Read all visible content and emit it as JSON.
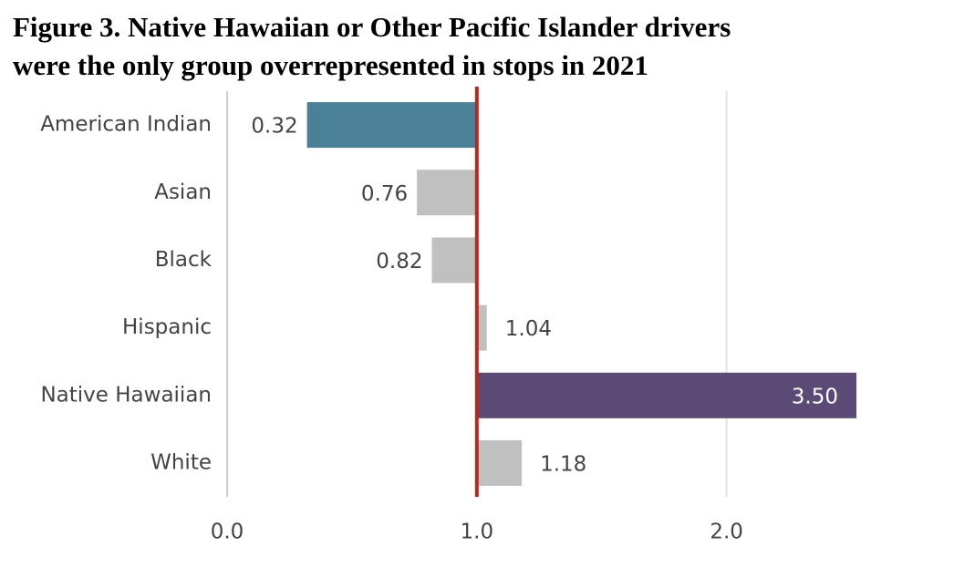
{
  "chart_data": {
    "type": "bar",
    "orientation": "horizontal",
    "title": [
      "Figure 3. Native Hawaiian or Other Pacific Islander drivers",
      "were the only group overrepresented in stops in 2021"
    ],
    "categories": [
      "American Indian",
      "Asian",
      "Black",
      "Hispanic",
      "Native Hawaiian",
      "White"
    ],
    "values": [
      0.32,
      0.76,
      0.82,
      1.04,
      3.5,
      1.18
    ],
    "value_labels": [
      "0.32",
      "0.76",
      "0.82",
      "1.04",
      "3.50",
      "1.18"
    ],
    "colors": [
      "#4a8199",
      "#c0c0c0",
      "#c0c0c0",
      "#c0c0c0",
      "#5c4a76",
      "#c0c0c0"
    ],
    "baseline": 1,
    "baseline_color": "#b22a22",
    "xlim": [
      0,
      2.52
    ],
    "xticks": [
      {
        "value": 0,
        "label": "0.0"
      },
      {
        "value": 1,
        "label": "1.0"
      },
      {
        "value": 2,
        "label": "2.0"
      }
    ],
    "grid": true
  }
}
